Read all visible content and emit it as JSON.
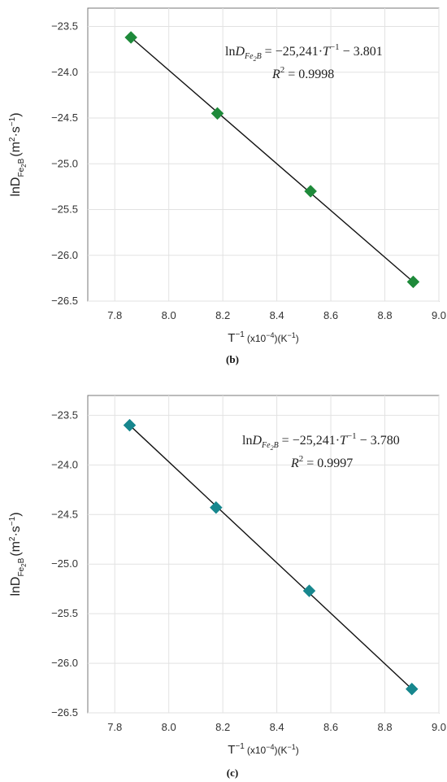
{
  "chart_data": [
    {
      "type": "scatter",
      "panel_label": "(b)",
      "x": [
        7.86,
        8.18,
        8.525,
        8.905
      ],
      "y": [
        -23.62,
        -24.45,
        -25.3,
        -26.29
      ],
      "series": [
        {
          "values": [
            -23.62,
            -24.45,
            -25.3,
            -26.29
          ]
        }
      ],
      "xlim": [
        7.7,
        9.0
      ],
      "ylim": [
        -26.5,
        -23.3
      ],
      "xticks": [
        "7.8",
        "8.0",
        "8.2",
        "8.4",
        "8.6",
        "8.8",
        "9.0"
      ],
      "yticks": [
        "-23.5",
        "-24.0",
        "-24.5",
        "-25.0",
        "-25.5",
        "-26.0",
        "-26.5"
      ],
      "xlabel": {
        "base": "T",
        "sup": "−1",
        "rest": "(x10",
        "rest_sup": "−4",
        "rest2": ")(K",
        "rest2_sup": "−1",
        "rest3": ")"
      },
      "ylabel": {
        "base": "lnD",
        "sub": "Fe",
        "sub2": "2",
        "sub3": "B",
        "units": "(m",
        "units_sup": "2",
        "units2": "·s",
        "units2_sup": "−1",
        "units3": ")"
      },
      "fit": {
        "slope": -25241,
        "intercept": -3.801
      },
      "equation": {
        "lhs": "ln",
        "D": "D",
        "sub": "Fe",
        "sub2": "2",
        "sub3": "B",
        "rhs": " = −25,241·",
        "T": "T",
        "T_sup": "−1",
        "rhs2": " − 3.801"
      },
      "r2": {
        "R": "R",
        "sup": "2",
        "value": " = 0.9998"
      },
      "marker_color": "#1e8a3a",
      "grid": true
    },
    {
      "type": "scatter",
      "panel_label": "(c)",
      "x": [
        7.855,
        8.175,
        8.52,
        8.9
      ],
      "y": [
        -23.6,
        -24.43,
        -25.27,
        -26.26
      ],
      "series": [
        {
          "values": [
            -23.6,
            -24.43,
            -25.27,
            -26.26
          ]
        }
      ],
      "xlim": [
        7.7,
        9.0
      ],
      "ylim": [
        -26.5,
        -23.3
      ],
      "xticks": [
        "7.8",
        "8.0",
        "8.2",
        "8.4",
        "8.6",
        "8.8",
        "9.0"
      ],
      "yticks": [
        "-23.5",
        "-24.0",
        "-24.5",
        "-25.0",
        "-25.5",
        "-26.0",
        "-26.5"
      ],
      "xlabel": {
        "base": "T",
        "sup": "−1",
        "rest": "(x10",
        "rest_sup": "−4",
        "rest2": ")(K",
        "rest2_sup": "−1",
        "rest3": ")"
      },
      "ylabel": {
        "base": "lnD",
        "sub": "Fe",
        "sub2": "2",
        "sub3": "B",
        "units": "(m",
        "units_sup": "2",
        "units2": "·s",
        "units2_sup": "−1",
        "units3": ")"
      },
      "fit": {
        "slope": -25241,
        "intercept": -3.78
      },
      "equation": {
        "lhs": "ln",
        "D": "D",
        "sub": "Fe",
        "sub2": "2",
        "sub3": "B",
        "rhs": " = −25,241·",
        "T": "T",
        "T_sup": "−1",
        "rhs2": " − 3.780"
      },
      "r2": {
        "R": "R",
        "sup": "2",
        "value": " = 0.9997"
      },
      "marker_color": "#17878e",
      "grid": true
    }
  ]
}
